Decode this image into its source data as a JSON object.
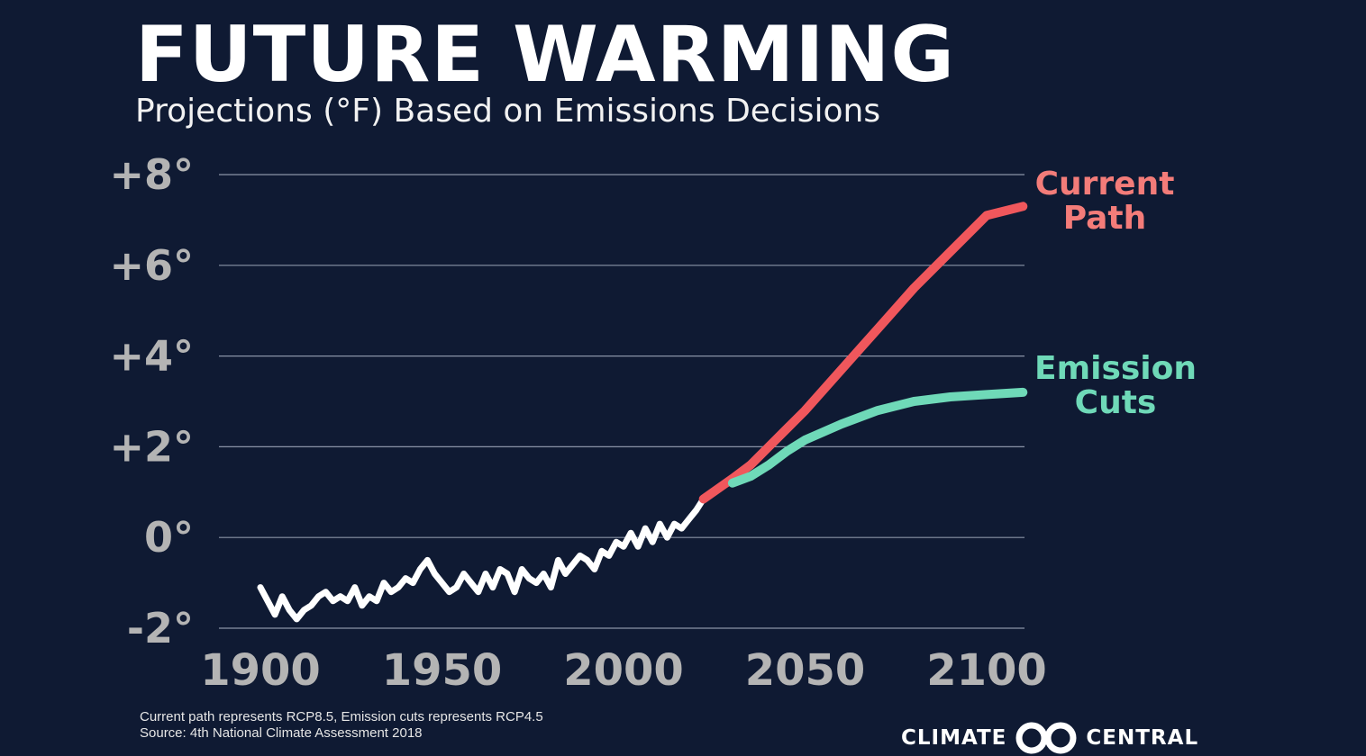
{
  "title": "FUTURE WARMING",
  "subtitle": "Projections (°F) Based on Emissions Decisions",
  "footnotes": [
    "Current path represents RCP8.5, Emission  cuts represents RCP4.5",
    "Source: 4th National Climate Assessment 2018"
  ],
  "logo": {
    "left": "CLIMATE",
    "right": "CENTRAL"
  },
  "colors": {
    "background": "#0f1a33",
    "historical": "#ffffff",
    "current_path": "#f0575c",
    "emission_cuts": "#6fd9b8",
    "grid": "#8a93a6",
    "tick": "#b4b4b4"
  },
  "chart_data": {
    "type": "line",
    "xlim": [
      1880,
      2110
    ],
    "ylim": [
      -2,
      8
    ],
    "x_ticks": [
      1900,
      1950,
      2000,
      2050,
      2100
    ],
    "x_tick_labels": [
      "1900",
      "1950",
      "2000",
      "2050",
      "2100"
    ],
    "y_ticks": [
      -2,
      0,
      2,
      4,
      6,
      8
    ],
    "y_tick_labels": [
      "-2°",
      "0°",
      "+2°",
      "+4°",
      "+6°",
      "+8°"
    ],
    "grid": "horizontal",
    "series": [
      {
        "key": "historical",
        "x": [
          1900,
          1902,
          1904,
          1906,
          1908,
          1910,
          1912,
          1914,
          1916,
          1918,
          1920,
          1922,
          1924,
          1926,
          1928,
          1930,
          1932,
          1934,
          1936,
          1938,
          1940,
          1942,
          1944,
          1946,
          1948,
          1950,
          1952,
          1954,
          1956,
          1958,
          1960,
          1962,
          1964,
          1966,
          1968,
          1970,
          1972,
          1974,
          1976,
          1978,
          1980,
          1982,
          1984,
          1986,
          1988,
          1990,
          1992,
          1994,
          1996,
          1998,
          2000,
          2002,
          2004,
          2006,
          2008,
          2010,
          2012,
          2014,
          2016,
          2018,
          2020,
          2022
        ],
        "values": [
          -1.1,
          -1.4,
          -1.7,
          -1.3,
          -1.6,
          -1.8,
          -1.6,
          -1.5,
          -1.3,
          -1.2,
          -1.4,
          -1.3,
          -1.4,
          -1.1,
          -1.5,
          -1.3,
          -1.4,
          -1.0,
          -1.2,
          -1.1,
          -0.9,
          -1.0,
          -0.7,
          -0.5,
          -0.8,
          -1.0,
          -1.2,
          -1.1,
          -0.8,
          -1.0,
          -1.2,
          -0.8,
          -1.1,
          -0.7,
          -0.8,
          -1.2,
          -0.7,
          -0.9,
          -1.0,
          -0.8,
          -1.1,
          -0.5,
          -0.8,
          -0.6,
          -0.4,
          -0.5,
          -0.7,
          -0.3,
          -0.4,
          -0.1,
          -0.2,
          0.1,
          -0.2,
          0.2,
          -0.1,
          0.3,
          0.0,
          0.3,
          0.2,
          0.4,
          0.6,
          0.85
        ]
      },
      {
        "key": "current_path",
        "name": "Current Path",
        "x": [
          2022,
          2030,
          2035,
          2040,
          2045,
          2050,
          2060,
          2070,
          2080,
          2090,
          2100,
          2110
        ],
        "values": [
          0.85,
          1.3,
          1.6,
          2.0,
          2.4,
          2.8,
          3.7,
          4.6,
          5.5,
          6.3,
          7.1,
          7.3
        ]
      },
      {
        "key": "emission_cuts",
        "name": "Emission Cuts",
        "x": [
          2030,
          2035,
          2040,
          2045,
          2050,
          2060,
          2070,
          2080,
          2090,
          2100,
          2110
        ],
        "values": [
          1.2,
          1.35,
          1.6,
          1.9,
          2.15,
          2.5,
          2.8,
          3.0,
          3.1,
          3.15,
          3.2
        ]
      }
    ]
  }
}
